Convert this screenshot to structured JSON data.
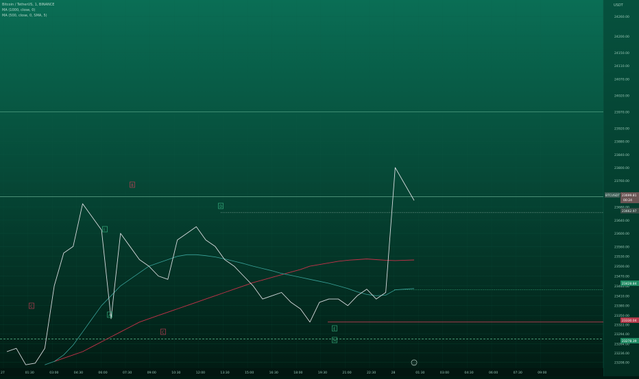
{
  "legend": {
    "symbol_line": "Bitcoin / TetherUS, 1, BINANCE",
    "ma1_line": "MA (1000, close, 0)",
    "ma2_line": "MA (500, close, 0, SMA, 5)"
  },
  "axis": {
    "currency": "USDT",
    "y_min": 23190,
    "y_max": 24310,
    "y_ticks": [
      "24260.00",
      "24200.00",
      "24150.00",
      "24110.00",
      "24070.00",
      "24020.00",
      "23970.00",
      "23920.00",
      "23880.00",
      "23840.00",
      "23800.00",
      "23760.00",
      "23720.00",
      "23680.00",
      "23640.00",
      "23600.00",
      "23560.00",
      "23530.00",
      "23500.00",
      "23470.00",
      "23440.00",
      "23410.00",
      "23380.00",
      "23350.00",
      "23322.00",
      "23294.00",
      "23264.00",
      "23236.00",
      "23208.00"
    ],
    "x_ticks": [
      "27",
      "01:30",
      "03:00",
      "04:30",
      "06:00",
      "07:30",
      "09:00",
      "10:30",
      "12:00",
      "13:30",
      "15:00",
      "16:30",
      "18:00",
      "19:30",
      "21:00",
      "22:30",
      "28",
      "01:30",
      "03:00",
      "04:30",
      "06:00",
      "07:30",
      "09:00"
    ]
  },
  "price_labels": {
    "symbol_tag": "BTCUSDT",
    "last_price": "23699.81",
    "countdown": "00:24",
    "level1": "23662.97",
    "level2": "23428.84",
    "level3": "23330.04",
    "level4": "23278.39"
  },
  "wave_labels": [
    "C",
    "A",
    "I",
    "B",
    "C",
    "D",
    "E",
    "H"
  ],
  "chart_data": {
    "type": "line",
    "title": "Bitcoin / TetherUS, 1, BINANCE",
    "ylabel": "USDT",
    "ylim": [
      23190,
      24310
    ],
    "x": [
      "27 00:00",
      "01:30",
      "03:00",
      "04:30",
      "05:30",
      "06:00",
      "06:30",
      "07:00",
      "07:30",
      "08:00",
      "08:30",
      "09:00",
      "09:30",
      "10:00",
      "10:30",
      "11:00",
      "11:30",
      "12:00",
      "12:30",
      "13:00",
      "13:30",
      "14:00",
      "14:30",
      "15:00",
      "15:30",
      "16:00",
      "16:30",
      "17:00",
      "17:30",
      "18:00",
      "18:30",
      "19:00",
      "19:30",
      "20:00",
      "20:30",
      "21:00",
      "21:30",
      "22:00",
      "22:30",
      "23:00",
      "23:30",
      "28 00:00",
      "00:15",
      "00:30"
    ],
    "series": [
      {
        "name": "BTCUSDT",
        "values": [
          23240,
          23250,
          23200,
          23205,
          23250,
          23440,
          23540,
          23560,
          23690,
          23650,
          23610,
          23340,
          23600,
          23560,
          23520,
          23500,
          23470,
          23460,
          23580,
          23600,
          23620,
          23580,
          23560,
          23520,
          23500,
          23470,
          23440,
          23400,
          23410,
          23420,
          23390,
          23370,
          23330,
          23390,
          23400,
          23400,
          23380,
          23410,
          23430,
          23400,
          23420,
          23800,
          23750,
          23700
        ]
      },
      {
        "name": "MA (1000, close, 0)",
        "values": [
          null,
          null,
          null,
          null,
          null,
          23210,
          23220,
          23230,
          23240,
          23255,
          23270,
          23285,
          23300,
          23315,
          23330,
          23340,
          23350,
          23360,
          23370,
          23380,
          23390,
          23400,
          23410,
          23420,
          23430,
          23440,
          23450,
          23458,
          23466,
          23474,
          23482,
          23490,
          23500,
          23505,
          23510,
          23515,
          23518,
          23520,
          23522,
          23520,
          23518,
          23517,
          23518,
          23519
        ]
      },
      {
        "name": "MA (500, close, 0, SMA, 5)",
        "values": [
          null,
          null,
          null,
          null,
          23200,
          23210,
          23230,
          23260,
          23300,
          23340,
          23380,
          23410,
          23440,
          23460,
          23480,
          23500,
          23510,
          23520,
          23530,
          23535,
          23535,
          23532,
          23528,
          23522,
          23515,
          23508,
          23500,
          23493,
          23486,
          23478,
          23472,
          23466,
          23460,
          23454,
          23448,
          23440,
          23432,
          23422,
          23414,
          23410,
          23412,
          23428,
          23430,
          23432
        ]
      }
    ],
    "horizontal_levels": [
      23970,
      23712,
      23662.97,
      23428.84,
      23330.04,
      23278.39
    ],
    "grid": true,
    "legend_position": "top-left"
  }
}
